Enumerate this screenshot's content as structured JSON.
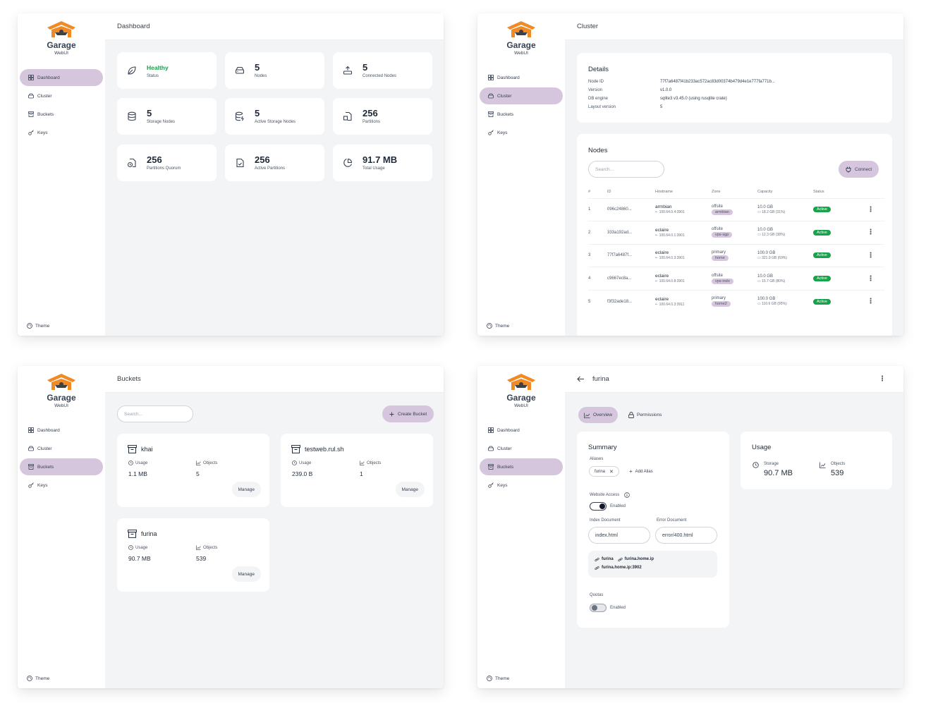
{
  "app": {
    "name": "Garage",
    "subtitle": "WebUI",
    "theme_label": "Theme"
  },
  "nav": [
    "Dashboard",
    "Cluster",
    "Buckets",
    "Keys"
  ],
  "colors": {
    "accent": "#d5c6dd",
    "success": "#16a34a",
    "logo_orange": "#f08a24"
  },
  "dashboard": {
    "title": "Dashboard",
    "stats": [
      {
        "value": "Healthy",
        "label": "Status",
        "icon": "leaf-icon"
      },
      {
        "value": "5",
        "label": "Nodes",
        "icon": "hard-drive-icon"
      },
      {
        "value": "5",
        "label": "Connected Nodes",
        "icon": "upload-icon"
      },
      {
        "value": "5",
        "label": "Storage Nodes",
        "icon": "database-icon"
      },
      {
        "value": "5",
        "label": "Active Storage Nodes",
        "icon": "database-zap-icon"
      },
      {
        "value": "256",
        "label": "Partitions",
        "icon": "file-box-icon"
      },
      {
        "value": "256",
        "label": "Partitions Quorum",
        "icon": "file-clock-icon"
      },
      {
        "value": "256",
        "label": "Active Partitions",
        "icon": "file-check-icon"
      },
      {
        "value": "91.7 MB",
        "label": "Total Usage",
        "icon": "pie-chart-icon"
      }
    ]
  },
  "cluster": {
    "title": "Cluster",
    "details_title": "Details",
    "details": [
      {
        "k": "Node ID",
        "v": "77f7a6487f41b233ac572ac83d00374b479d4e1e777fa771b..."
      },
      {
        "k": "Version",
        "v": "v1.0.0"
      },
      {
        "k": "DB engine",
        "v": "sqlite3 v3.45.0 (using rusqlite crate)"
      },
      {
        "k": "Layout version",
        "v": "5"
      }
    ],
    "nodes_title": "Nodes",
    "search_placeholder": "Search...",
    "connect_label": "Connect",
    "columns": [
      "#",
      "ID",
      "Hostname",
      "Zone",
      "Capacity",
      "Status"
    ],
    "rows": [
      {
        "n": "1",
        "id": "096c24860...",
        "host": "armbian",
        "addr": "100.64.0.4:3901",
        "zone": "offsite",
        "tag": "armbian",
        "cap": "10.0 GB",
        "free": "18.2 GB (31%)",
        "status": "Active"
      },
      {
        "n": "2",
        "id": "333a192ad...",
        "host": "eclaire",
        "addr": "100.64.0.1:3901",
        "zone": "offsite",
        "tag": "vps-sgp",
        "cap": "10.0 GB",
        "free": "12.3 GB (38%)",
        "status": "Active"
      },
      {
        "n": "3",
        "id": "77f7a6487f...",
        "host": "eclaire",
        "addr": "100.64.0.3:3901",
        "zone": "primary",
        "tag": "home",
        "cap": "100.0 GB",
        "free": "321.9 GB (69%)",
        "status": "Active"
      },
      {
        "n": "4",
        "id": "c9667ec8a...",
        "host": "eclaire",
        "addr": "100.64.0.8:3901",
        "zone": "offsite",
        "tag": "vps-indo",
        "cap": "10.0 GB",
        "free": "15.7 GB (80%)",
        "status": "Active"
      },
      {
        "n": "5",
        "id": "f3f32ade18...",
        "host": "eclaire",
        "addr": "100.64.0.3:3911",
        "zone": "primary",
        "tag": "home2",
        "cap": "100.0 GB",
        "free": "110.6 GB (95%)",
        "status": "Active"
      }
    ]
  },
  "buckets": {
    "title": "Buckets",
    "search_placeholder": "Search...",
    "create_label": "Create Bucket",
    "usage_label": "Usage",
    "objects_label": "Objects",
    "manage_label": "Manage",
    "items": [
      {
        "name": "khai",
        "usage": "1.1 MB",
        "objects": "5"
      },
      {
        "name": "testweb.rul.sh",
        "usage": "239.0 B",
        "objects": "1"
      },
      {
        "name": "furina",
        "usage": "90.7 MB",
        "objects": "539"
      }
    ]
  },
  "bucket_detail": {
    "title": "furina",
    "tabs": [
      "Overview",
      "Permissions"
    ],
    "summary_title": "Summary",
    "aliases_label": "Aliases",
    "alias": "furina",
    "add_alias_label": "Add Alias",
    "website_access_label": "Website Access",
    "enabled_label": "Enabled",
    "index_label": "Index Document",
    "index_value": "index.html",
    "error_label": "Error Document",
    "error_value": "error/400.html",
    "links": [
      "furina",
      "furina.home.ip",
      "furina.home.ip:3902"
    ],
    "quotas_label": "Quotas",
    "usage_title": "Usage",
    "storage_label": "Storage",
    "storage_value": "90.7 MB",
    "objects_label": "Objects",
    "objects_value": "539"
  }
}
